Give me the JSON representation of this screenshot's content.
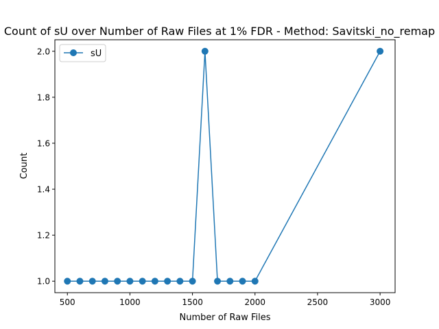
{
  "chart_data": {
    "type": "line",
    "title": "Count of sU over Number of Raw Files at 1% FDR - Method: Savitski_no_remap",
    "xlabel": "Number of Raw Files",
    "ylabel": "Count",
    "xlim": [
      400,
      3120
    ],
    "ylim": [
      0.95,
      2.05
    ],
    "xticks": [
      500,
      1000,
      1500,
      2000,
      2500,
      3000
    ],
    "yticks": [
      1.0,
      1.2,
      1.4,
      1.6,
      1.8,
      2.0
    ],
    "grid": false,
    "legend_position": "top-left",
    "series": [
      {
        "name": "sU",
        "color": "#1f77b4",
        "marker": "circle",
        "x": [
          500,
          600,
          700,
          800,
          900,
          1000,
          1100,
          1200,
          1300,
          1400,
          1500,
          1600,
          1700,
          1800,
          1900,
          2000,
          3000
        ],
        "y": [
          1,
          1,
          1,
          1,
          1,
          1,
          1,
          1,
          1,
          1,
          1,
          2,
          1,
          1,
          1,
          1,
          2
        ]
      }
    ]
  }
}
